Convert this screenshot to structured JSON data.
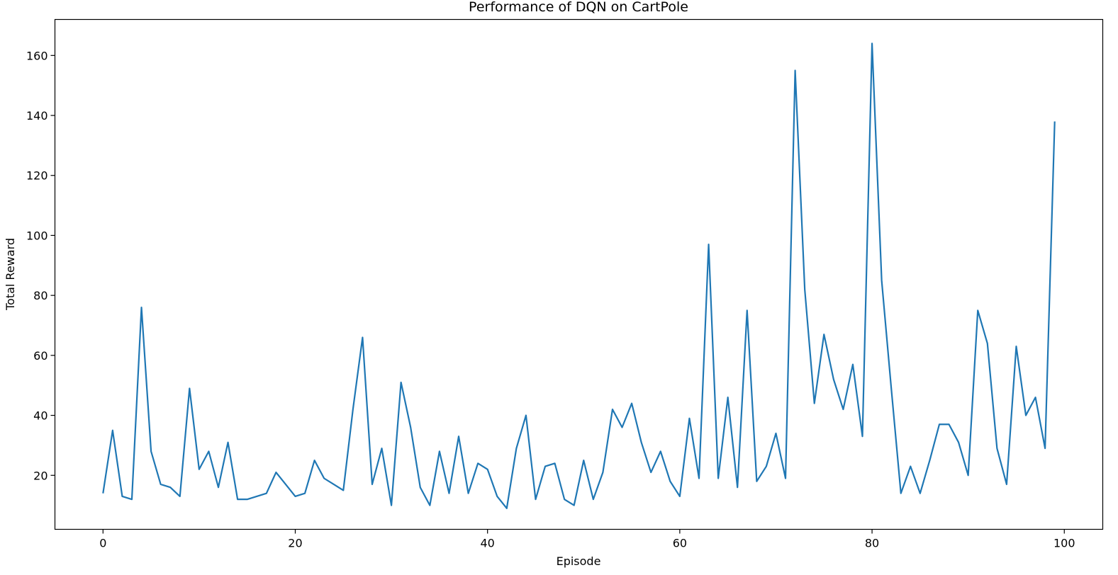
{
  "chart_data": {
    "type": "line",
    "title": "Performance of DQN on CartPole",
    "xlabel": "Episode",
    "ylabel": "Total Reward",
    "xlim": [
      -5,
      104
    ],
    "ylim": [
      2,
      172
    ],
    "xticks": [
      0,
      20,
      40,
      60,
      80,
      100
    ],
    "yticks": [
      20,
      40,
      60,
      80,
      100,
      120,
      140,
      160
    ],
    "grid": false,
    "legend": "none",
    "series": [
      {
        "color": "#1f77b4",
        "x": [
          0,
          1,
          2,
          3,
          4,
          5,
          6,
          7,
          8,
          9,
          10,
          11,
          12,
          13,
          14,
          15,
          16,
          17,
          18,
          19,
          20,
          21,
          22,
          23,
          24,
          25,
          26,
          27,
          28,
          29,
          30,
          31,
          32,
          33,
          34,
          35,
          36,
          37,
          38,
          39,
          40,
          41,
          42,
          43,
          44,
          45,
          46,
          47,
          48,
          49,
          50,
          51,
          52,
          53,
          54,
          55,
          56,
          57,
          58,
          59,
          60,
          61,
          62,
          63,
          64,
          65,
          66,
          67,
          68,
          69,
          70,
          71,
          72,
          73,
          74,
          75,
          76,
          77,
          78,
          79,
          80,
          81,
          82,
          83,
          84,
          85,
          86,
          87,
          88,
          89,
          90,
          91,
          92,
          93,
          94,
          95,
          96,
          97,
          98,
          99
        ],
        "values": [
          14,
          35,
          13,
          12,
          76,
          28,
          17,
          16,
          13,
          49,
          22,
          28,
          16,
          31,
          12,
          12,
          13,
          14,
          21,
          17,
          13,
          14,
          25,
          19,
          17,
          15,
          42,
          66,
          17,
          29,
          10,
          51,
          36,
          16,
          10,
          28,
          14,
          33,
          14,
          24,
          22,
          13,
          9,
          29,
          40,
          12,
          23,
          24,
          12,
          10,
          25,
          12,
          21,
          42,
          36,
          44,
          31,
          21,
          28,
          18,
          13,
          39,
          19,
          97,
          19,
          46,
          16,
          75,
          18,
          23,
          34,
          19,
          155,
          82,
          44,
          67,
          52,
          42,
          57,
          33,
          164,
          85,
          49,
          14,
          23,
          14,
          25,
          37,
          37,
          31,
          20,
          75,
          64,
          29,
          17,
          63,
          40,
          46,
          29,
          138
        ]
      }
    ]
  }
}
